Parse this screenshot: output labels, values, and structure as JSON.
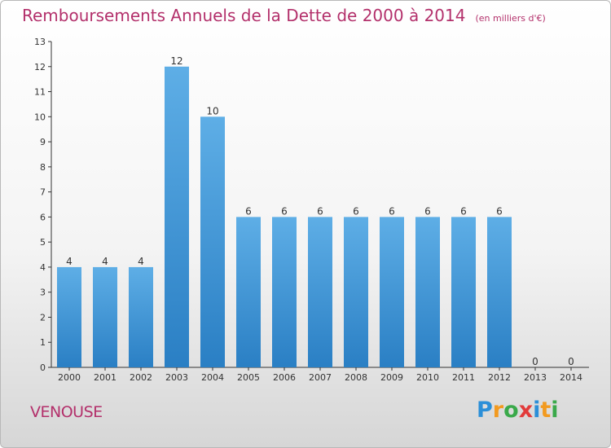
{
  "title": "Remboursements Annuels de la Dette de 2000 à 2014",
  "unit_note": "(en milliers d'€)",
  "commune": "VENOUSE",
  "brand": {
    "letters": [
      "P",
      "r",
      "o",
      "x",
      "i",
      "t",
      "i"
    ],
    "colors": [
      "#2b8fd8",
      "#f29a1f",
      "#3aa94a",
      "#e23b3b",
      "#2b8fd8",
      "#f29a1f",
      "#3aa94a"
    ]
  },
  "chart_data": {
    "type": "bar",
    "categories": [
      "2000",
      "2001",
      "2002",
      "2003",
      "2004",
      "2005",
      "2006",
      "2007",
      "2008",
      "2009",
      "2010",
      "2011",
      "2012",
      "2013",
      "2014"
    ],
    "values": [
      4,
      4,
      4,
      12,
      10,
      6,
      6,
      6,
      6,
      6,
      6,
      6,
      6,
      0,
      0
    ],
    "ylim": [
      0,
      13
    ],
    "yticks": [
      0,
      1,
      2,
      3,
      4,
      5,
      6,
      7,
      8,
      9,
      10,
      11,
      12,
      13
    ],
    "grid": false,
    "colors": {
      "bar_top": "#5eaee6",
      "bar_bottom": "#2a7fc4",
      "axis": "#333333",
      "text": "#333333"
    }
  }
}
